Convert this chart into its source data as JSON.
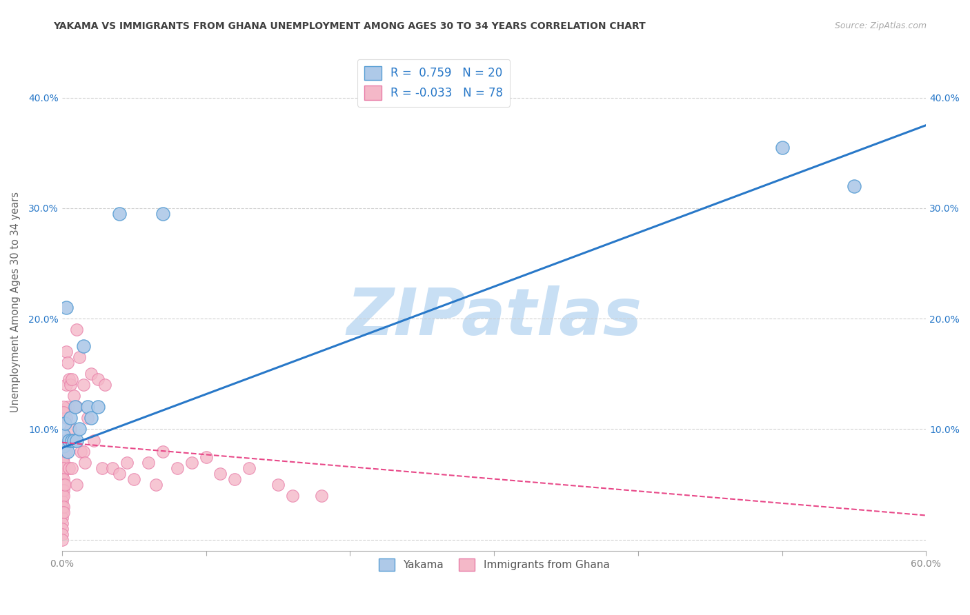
{
  "title": "YAKAMA VS IMMIGRANTS FROM GHANA UNEMPLOYMENT AMONG AGES 30 TO 34 YEARS CORRELATION CHART",
  "source": "Source: ZipAtlas.com",
  "ylabel": "Unemployment Among Ages 30 to 34 years",
  "watermark": "ZIPatlas",
  "xlim": [
    0.0,
    0.6
  ],
  "ylim": [
    -0.01,
    0.44
  ],
  "xticks": [
    0.0,
    0.1,
    0.2,
    0.3,
    0.4,
    0.5,
    0.6
  ],
  "xtick_labels_show": [
    "0.0%",
    "",
    "",
    "",
    "",
    "",
    "60.0%"
  ],
  "yticks": [
    0.0,
    0.1,
    0.2,
    0.3,
    0.4
  ],
  "ytick_labels": [
    "",
    "10.0%",
    "20.0%",
    "30.0%",
    "40.0%"
  ],
  "right_ytick_labels": [
    "",
    "10.0%",
    "20.0%",
    "30.0%",
    "40.0%"
  ],
  "legend1_label": "R =  0.759   N = 20",
  "legend2_label": "R = -0.033   N = 78",
  "legend_label1": "Yakama",
  "legend_label2": "Immigrants from Ghana",
  "blue_color": "#aec9e8",
  "pink_color": "#f4b8c8",
  "blue_dot_edge": "#5a9fd4",
  "pink_dot_edge": "#e87da8",
  "blue_line_color": "#2878c8",
  "pink_line_color": "#e84888",
  "title_color": "#404040",
  "source_color": "#aaaaaa",
  "watermark_color": "#c8dff4",
  "background_color": "#ffffff",
  "grid_color": "#cccccc",
  "yakama_x": [
    0.001,
    0.001,
    0.002,
    0.003,
    0.004,
    0.005,
    0.006,
    0.007,
    0.008,
    0.009,
    0.01,
    0.012,
    0.015,
    0.018,
    0.02,
    0.025,
    0.04,
    0.07,
    0.5,
    0.55
  ],
  "yakama_y": [
    0.085,
    0.095,
    0.105,
    0.21,
    0.08,
    0.09,
    0.11,
    0.09,
    0.09,
    0.12,
    0.09,
    0.1,
    0.175,
    0.12,
    0.11,
    0.12,
    0.295,
    0.295,
    0.355,
    0.32
  ],
  "ghana_x": [
    0.0,
    0.0,
    0.0,
    0.0,
    0.0,
    0.0,
    0.0,
    0.0,
    0.0,
    0.0,
    0.0,
    0.0,
    0.0,
    0.0,
    0.0,
    0.0,
    0.0,
    0.0,
    0.0,
    0.0,
    0.001,
    0.001,
    0.001,
    0.001,
    0.001,
    0.001,
    0.001,
    0.001,
    0.001,
    0.001,
    0.002,
    0.002,
    0.003,
    0.003,
    0.003,
    0.003,
    0.004,
    0.004,
    0.005,
    0.005,
    0.006,
    0.006,
    0.007,
    0.007,
    0.008,
    0.008,
    0.01,
    0.01,
    0.01,
    0.012,
    0.013,
    0.015,
    0.015,
    0.016,
    0.018,
    0.02,
    0.022,
    0.025,
    0.028,
    0.03,
    0.035,
    0.04,
    0.045,
    0.05,
    0.06,
    0.065,
    0.07,
    0.08,
    0.09,
    0.1,
    0.11,
    0.12,
    0.13,
    0.15,
    0.16,
    0.18,
    0.001,
    0.001
  ],
  "ghana_y": [
    0.075,
    0.07,
    0.065,
    0.06,
    0.055,
    0.05,
    0.045,
    0.04,
    0.035,
    0.03,
    0.025,
    0.02,
    0.015,
    0.01,
    0.005,
    0.0,
    0.07,
    0.065,
    0.06,
    0.055,
    0.08,
    0.075,
    0.07,
    0.065,
    0.055,
    0.05,
    0.045,
    0.04,
    0.03,
    0.025,
    0.09,
    0.05,
    0.17,
    0.14,
    0.11,
    0.08,
    0.16,
    0.12,
    0.145,
    0.065,
    0.14,
    0.1,
    0.145,
    0.065,
    0.13,
    0.09,
    0.19,
    0.12,
    0.05,
    0.165,
    0.08,
    0.14,
    0.08,
    0.07,
    0.11,
    0.15,
    0.09,
    0.145,
    0.065,
    0.14,
    0.065,
    0.06,
    0.07,
    0.055,
    0.07,
    0.05,
    0.08,
    0.065,
    0.07,
    0.075,
    0.06,
    0.055,
    0.065,
    0.05,
    0.04,
    0.04,
    0.12,
    0.115
  ],
  "blue_trendline_x": [
    0.0,
    0.6
  ],
  "blue_trendline_y": [
    0.083,
    0.375
  ],
  "pink_trendline_x": [
    0.0,
    0.6
  ],
  "pink_trendline_y": [
    0.088,
    0.022
  ]
}
